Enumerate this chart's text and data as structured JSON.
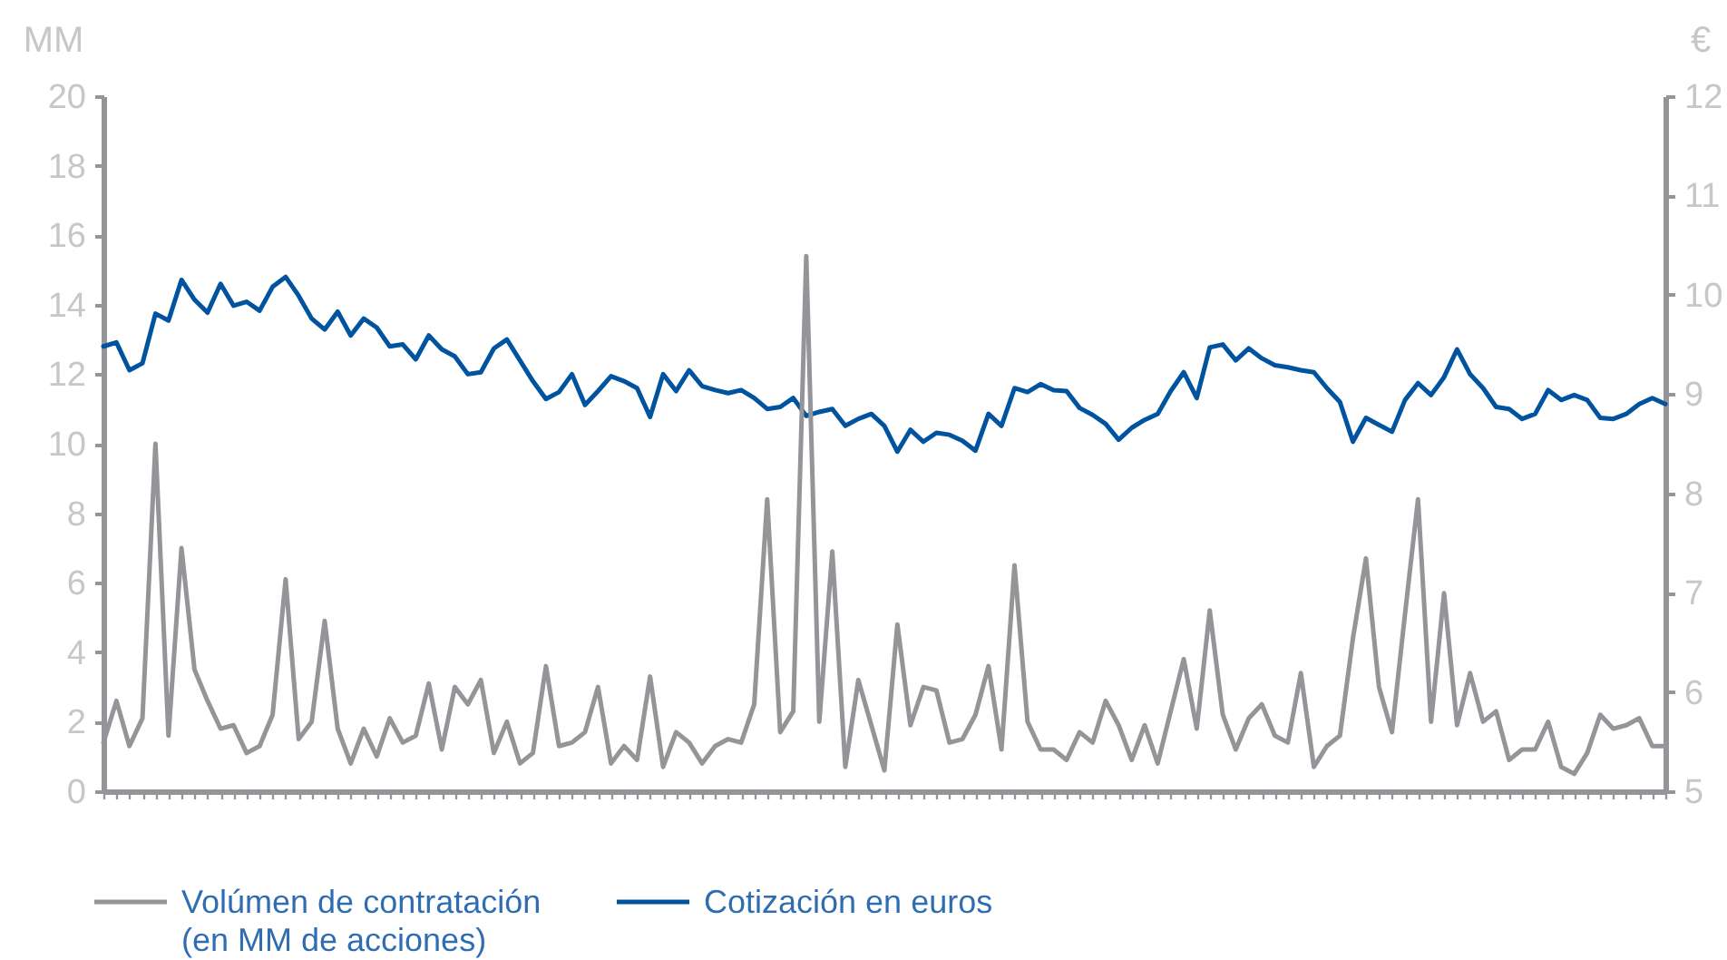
{
  "chart_data": {
    "type": "line",
    "ylabel": "MM",
    "y2label": "€",
    "categories": [
      null,
      null,
      null,
      null,
      null,
      null,
      null,
      null,
      null,
      null,
      null,
      null,
      null,
      null,
      null,
      null,
      null,
      null,
      null,
      null,
      null,
      null,
      null,
      null,
      null,
      null,
      null,
      null,
      null,
      null,
      null,
      null,
      null,
      null,
      null,
      null,
      null,
      null,
      null,
      null,
      null,
      null,
      null,
      null,
      null,
      null,
      null,
      null,
      null,
      null,
      null,
      null,
      null,
      null,
      null,
      null,
      null,
      null,
      null,
      null,
      null,
      null,
      null,
      null,
      null,
      null,
      null,
      null,
      null,
      null,
      null,
      null,
      null,
      null,
      null,
      null,
      null,
      null,
      null,
      null,
      null,
      null,
      null,
      null,
      null,
      null,
      null,
      null,
      null,
      null,
      null,
      null,
      null,
      null,
      null,
      null,
      null,
      null,
      null,
      null,
      null,
      null,
      null,
      null,
      null,
      null,
      null,
      null,
      null,
      null,
      null,
      null,
      null,
      null,
      null,
      null,
      null,
      null,
      null,
      null,
      null
    ],
    "ylim": [
      0,
      20
    ],
    "yticks": [
      0,
      2,
      4,
      6,
      8,
      10,
      12,
      14,
      16,
      18,
      20
    ],
    "y2lim": [
      5,
      12
    ],
    "y2ticks": [
      5,
      6,
      7,
      8,
      9,
      10,
      11,
      12
    ],
    "grid": false,
    "legend": "bottom left",
    "line_style": "solid",
    "series": [
      {
        "name": "Volúmen de contratación\n(en MM de acciones)",
        "color": "#939598",
        "axis": "y",
        "values": [
          1.4,
          2.6,
          1.3,
          2.1,
          10.0,
          1.6,
          7.0,
          3.5,
          2.6,
          1.8,
          1.9,
          1.1,
          1.3,
          2.2,
          6.1,
          1.5,
          2.0,
          4.9,
          1.8,
          0.8,
          1.8,
          1.0,
          2.1,
          1.4,
          1.6,
          3.1,
          1.2,
          3.0,
          2.5,
          3.2,
          1.1,
          2.0,
          0.8,
          1.1,
          3.6,
          1.3,
          1.4,
          1.7,
          3.0,
          0.8,
          1.3,
          0.9,
          3.3,
          0.7,
          1.7,
          1.4,
          0.8,
          1.3,
          1.5,
          1.4,
          2.5,
          8.4,
          1.7,
          2.3,
          15.4,
          2.0,
          6.9,
          0.7,
          3.2,
          1.9,
          0.6,
          4.8,
          1.9,
          3.0,
          2.9,
          1.4,
          1.5,
          2.2,
          3.6,
          1.2,
          6.5,
          2.0,
          1.2,
          1.2,
          0.9,
          1.7,
          1.4,
          2.6,
          1.9,
          0.9,
          1.9,
          0.8,
          2.3,
          3.8,
          1.8,
          5.2,
          2.2,
          1.2,
          2.1,
          2.5,
          1.6,
          1.4,
          3.4,
          0.7,
          1.3,
          1.6,
          4.4,
          6.7,
          3.0,
          1.7,
          5.1,
          8.4,
          2.0,
          5.7,
          1.9,
          3.4,
          2.0,
          2.3,
          0.9,
          1.2,
          1.2,
          2.0,
          0.7,
          0.5,
          1.1,
          2.2,
          1.8,
          1.9,
          2.1,
          1.3,
          1.3
        ]
      },
      {
        "name": "Cotización en euros",
        "color": "#00539f",
        "axis": "y2",
        "values": [
          9.48,
          9.52,
          9.24,
          9.31,
          9.81,
          9.74,
          10.15,
          9.95,
          9.82,
          10.11,
          9.89,
          9.93,
          9.84,
          10.08,
          10.18,
          9.99,
          9.76,
          9.65,
          9.83,
          9.59,
          9.76,
          9.67,
          9.48,
          9.5,
          9.35,
          9.59,
          9.45,
          9.38,
          9.2,
          9.22,
          9.46,
          9.55,
          9.34,
          9.13,
          8.95,
          9.02,
          9.2,
          8.89,
          9.03,
          9.18,
          9.13,
          9.06,
          8.77,
          9.2,
          9.03,
          9.24,
          9.08,
          9.04,
          9.01,
          9.04,
          8.96,
          8.85,
          8.87,
          8.96,
          8.78,
          8.82,
          8.85,
          8.68,
          8.75,
          8.8,
          8.68,
          8.42,
          8.64,
          8.52,
          8.61,
          8.59,
          8.53,
          8.43,
          8.8,
          8.68,
          9.06,
          9.02,
          9.1,
          9.04,
          9.03,
          8.86,
          8.79,
          8.7,
          8.54,
          8.66,
          8.74,
          8.8,
          9.03,
          9.22,
          8.96,
          9.47,
          9.5,
          9.34,
          9.46,
          9.36,
          9.29,
          9.27,
          9.24,
          9.22,
          9.06,
          8.92,
          8.52,
          8.76,
          8.69,
          8.62,
          8.94,
          9.11,
          8.99,
          9.17,
          9.45,
          9.2,
          9.06,
          8.87,
          8.85,
          8.75,
          8.8,
          9.04,
          8.94,
          8.99,
          8.94,
          8.76,
          8.75,
          8.8,
          8.9,
          8.96,
          8.9
        ]
      }
    ]
  }
}
